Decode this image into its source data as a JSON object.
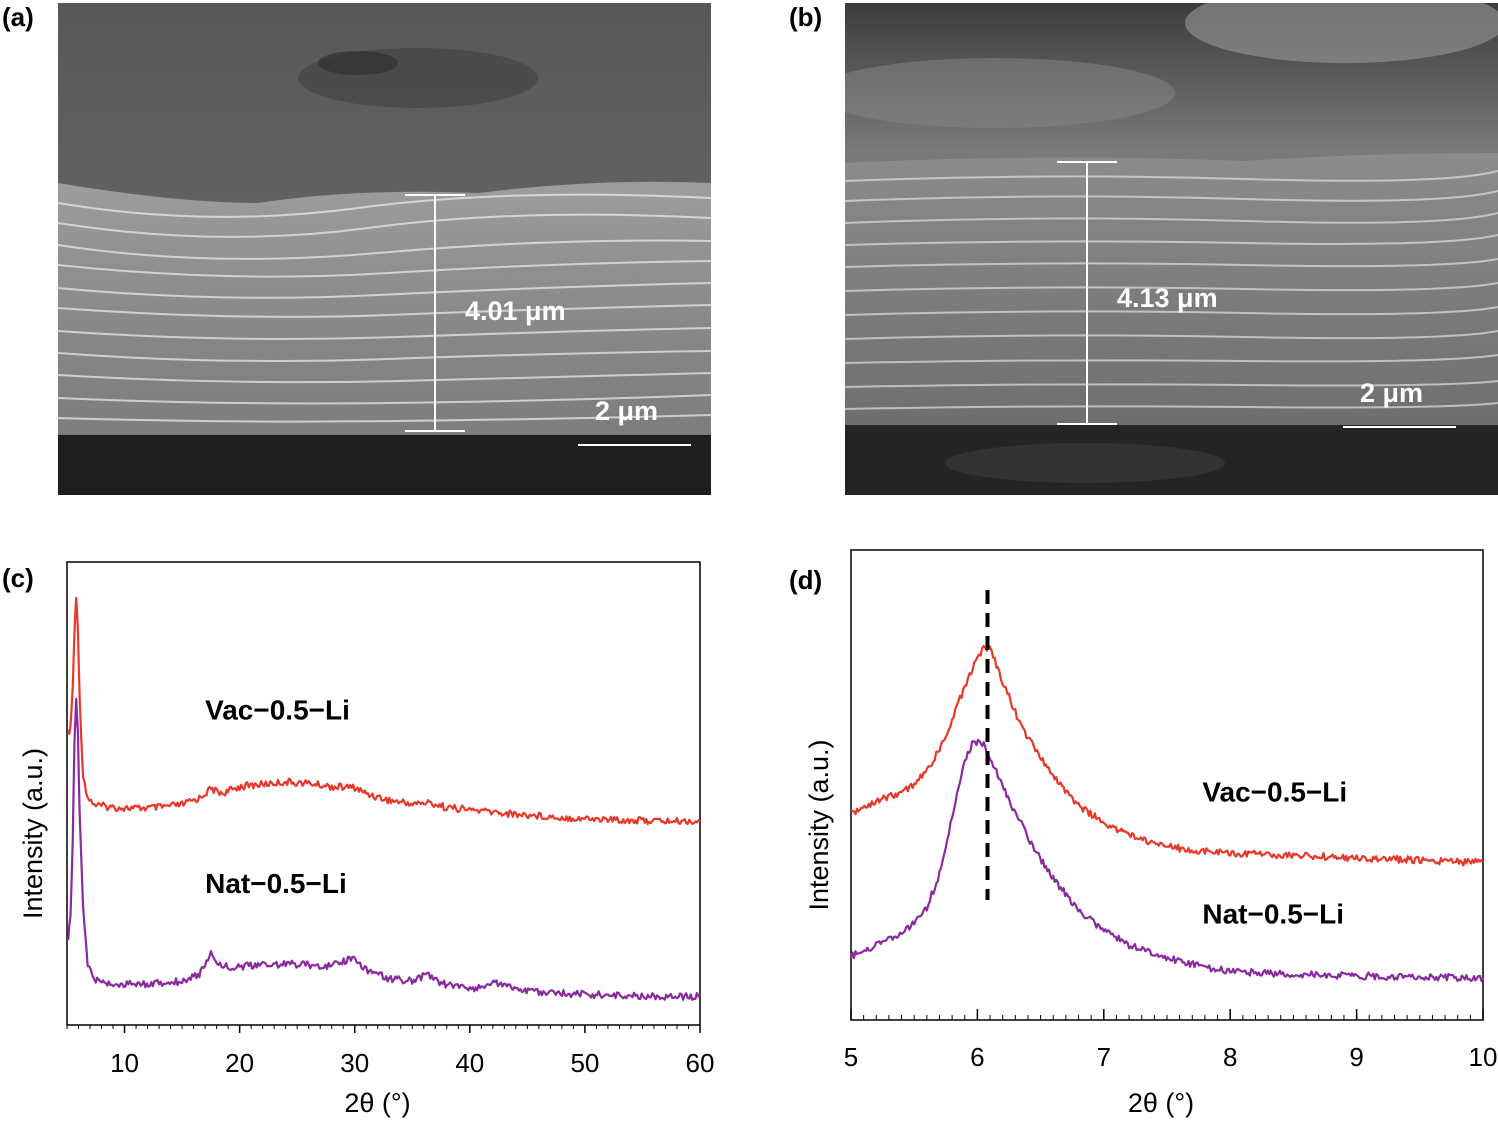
{
  "panels": {
    "a": {
      "label": "(a)",
      "thickness_label": "4.01 μm",
      "scale_label": "2 μm"
    },
    "b": {
      "label": "(b)",
      "thickness_label": "4.13 μm",
      "scale_label": "2 μm"
    },
    "c": {
      "label": "(c)"
    },
    "d": {
      "label": "(d)"
    }
  },
  "colors": {
    "vac": "#e8382a",
    "nat": "#8a2aa0",
    "axis": "#000000",
    "sem_dark": "#1e1e1e",
    "sem_mid": "#5a5a5a",
    "sem_light": "#bdbdbd"
  },
  "chart_data": [
    {
      "type": "line",
      "panel": "c",
      "xlabel": "2θ (°)",
      "ylabel": "Intensity (a.u.)",
      "xlim": [
        5,
        60
      ],
      "ylim": [
        0,
        1
      ],
      "xticks": [
        10,
        20,
        30,
        40,
        50,
        60
      ],
      "xtick_labels": [
        "10",
        "20",
        "30",
        "40",
        "50",
        "60"
      ],
      "y_ticks_shown": false,
      "series": [
        {
          "name": "Vac−0.5−Li",
          "color": "#e8382a",
          "points": [
            [
              5.1,
              0.63
            ],
            [
              5.3,
              0.64
            ],
            [
              5.5,
              0.73
            ],
            [
              5.65,
              0.85
            ],
            [
              5.8,
              0.92
            ],
            [
              5.95,
              0.86
            ],
            [
              6.1,
              0.7
            ],
            [
              6.4,
              0.54
            ],
            [
              6.8,
              0.49
            ],
            [
              7.5,
              0.475
            ],
            [
              9,
              0.47
            ],
            [
              11,
              0.468
            ],
            [
              13,
              0.47
            ],
            [
              15,
              0.476
            ],
            [
              16.5,
              0.49
            ],
            [
              17.5,
              0.51
            ],
            [
              18.5,
              0.5
            ],
            [
              20,
              0.515
            ],
            [
              22,
              0.52
            ],
            [
              24,
              0.525
            ],
            [
              26,
              0.522
            ],
            [
              28,
              0.515
            ],
            [
              30,
              0.513
            ],
            [
              31,
              0.5
            ],
            [
              33,
              0.485
            ],
            [
              35,
              0.478
            ],
            [
              36.5,
              0.48
            ],
            [
              38,
              0.47
            ],
            [
              40,
              0.465
            ],
            [
              42,
              0.46
            ],
            [
              44,
              0.455
            ],
            [
              46,
              0.452
            ],
            [
              48,
              0.448
            ],
            [
              50,
              0.446
            ],
            [
              52,
              0.444
            ],
            [
              54,
              0.442
            ],
            [
              56,
              0.441
            ],
            [
              58,
              0.44
            ],
            [
              60,
              0.44
            ]
          ],
          "label_pos": [
            17,
            0.66
          ]
        },
        {
          "name": "Nat−0.5−Li",
          "color": "#8a2aa0",
          "points": [
            [
              5.1,
              0.19
            ],
            [
              5.3,
              0.23
            ],
            [
              5.5,
              0.4
            ],
            [
              5.65,
              0.61
            ],
            [
              5.8,
              0.7
            ],
            [
              5.95,
              0.63
            ],
            [
              6.1,
              0.45
            ],
            [
              6.4,
              0.25
            ],
            [
              6.8,
              0.13
            ],
            [
              7.5,
              0.096
            ],
            [
              9,
              0.088
            ],
            [
              11,
              0.088
            ],
            [
              13,
              0.09
            ],
            [
              15,
              0.095
            ],
            [
              16.5,
              0.11
            ],
            [
              17.5,
              0.155
            ],
            [
              18.3,
              0.13
            ],
            [
              19.5,
              0.125
            ],
            [
              22,
              0.13
            ],
            [
              24,
              0.132
            ],
            [
              26,
              0.13
            ],
            [
              28,
              0.128
            ],
            [
              29.8,
              0.145
            ],
            [
              31,
              0.12
            ],
            [
              33,
              0.1
            ],
            [
              35,
              0.095
            ],
            [
              36.3,
              0.11
            ],
            [
              37.5,
              0.09
            ],
            [
              40,
              0.078
            ],
            [
              42.7,
              0.092
            ],
            [
              44,
              0.078
            ],
            [
              46,
              0.07
            ],
            [
              48,
              0.068
            ],
            [
              50,
              0.067
            ],
            [
              52,
              0.064
            ],
            [
              54,
              0.063
            ],
            [
              56,
              0.062
            ],
            [
              58,
              0.062
            ],
            [
              60,
              0.062
            ]
          ],
          "label_pos": [
            17,
            0.285
          ]
        }
      ]
    },
    {
      "type": "line",
      "panel": "d",
      "xlabel": "2θ (°)",
      "ylabel": "Intensity (a.u.)",
      "xlim": [
        5,
        10
      ],
      "ylim": [
        0,
        1
      ],
      "xticks": [
        5,
        6,
        7,
        8,
        9,
        10
      ],
      "xtick_labels": [
        "5",
        "6",
        "7",
        "8",
        "9",
        "10"
      ],
      "minor_xtick_step": 0.1,
      "y_ticks_shown": false,
      "reference_line": {
        "x": 6.08,
        "style": "dashed"
      },
      "series": [
        {
          "name": "Vac−0.5−Li",
          "color": "#e8382a",
          "points": [
            [
              5.0,
              0.44
            ],
            [
              5.2,
              0.465
            ],
            [
              5.4,
              0.485
            ],
            [
              5.5,
              0.5
            ],
            [
              5.6,
              0.53
            ],
            [
              5.7,
              0.575
            ],
            [
              5.8,
              0.64
            ],
            [
              5.9,
              0.71
            ],
            [
              6.0,
              0.77
            ],
            [
              6.05,
              0.795
            ],
            [
              6.1,
              0.79
            ],
            [
              6.2,
              0.72
            ],
            [
              6.3,
              0.655
            ],
            [
              6.4,
              0.6
            ],
            [
              6.6,
              0.52
            ],
            [
              6.8,
              0.455
            ],
            [
              7.0,
              0.42
            ],
            [
              7.2,
              0.395
            ],
            [
              7.4,
              0.375
            ],
            [
              7.6,
              0.365
            ],
            [
              7.8,
              0.36
            ],
            [
              8.0,
              0.355
            ],
            [
              8.5,
              0.35
            ],
            [
              9.0,
              0.345
            ],
            [
              9.5,
              0.34
            ],
            [
              10.0,
              0.335
            ]
          ],
          "label_pos": [
            7.78,
            0.465
          ]
        },
        {
          "name": "Nat−0.5−Li",
          "color": "#8a2aa0",
          "points": [
            [
              5.0,
              0.135
            ],
            [
              5.2,
              0.16
            ],
            [
              5.4,
              0.185
            ],
            [
              5.5,
              0.205
            ],
            [
              5.6,
              0.24
            ],
            [
              5.7,
              0.31
            ],
            [
              5.8,
              0.43
            ],
            [
              5.9,
              0.55
            ],
            [
              5.97,
              0.595
            ],
            [
              6.05,
              0.585
            ],
            [
              6.15,
              0.53
            ],
            [
              6.3,
              0.44
            ],
            [
              6.45,
              0.365
            ],
            [
              6.6,
              0.3
            ],
            [
              6.8,
              0.235
            ],
            [
              7.0,
              0.19
            ],
            [
              7.2,
              0.16
            ],
            [
              7.4,
              0.14
            ],
            [
              7.6,
              0.125
            ],
            [
              7.8,
              0.112
            ],
            [
              8.0,
              0.104
            ],
            [
              8.5,
              0.097
            ],
            [
              9.0,
              0.094
            ],
            [
              9.5,
              0.091
            ],
            [
              10.0,
              0.09
            ]
          ],
          "label_pos": [
            7.78,
            0.205
          ]
        }
      ]
    }
  ]
}
